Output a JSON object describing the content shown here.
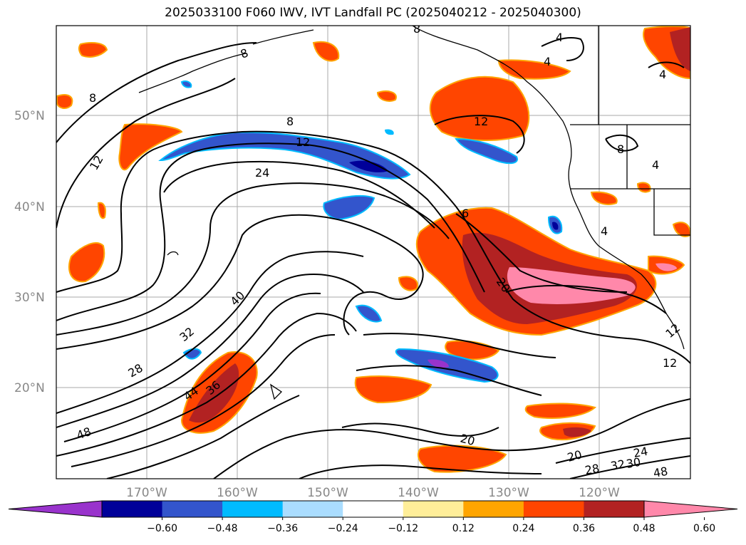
{
  "title": "2025033100 F060 IWV, IVT Landfall PC (2025040212 - 2025040300)",
  "colors": {
    "negative": [
      "#9933CC",
      "#000099",
      "#3355CC",
      "#00BBFF",
      "#AADDFF"
    ],
    "neutral": "#FFFFFF",
    "positive": [
      "#FFEE99",
      "#FFA500",
      "#FF4500",
      "#B22222",
      "#FF88AA"
    ],
    "contour": "#000000",
    "grid": "#AAAAAA",
    "coast": "#000000"
  },
  "lon_ticks": [
    "170°W",
    "160°W",
    "150°W",
    "140°W",
    "130°W",
    "120°W"
  ],
  "lat_ticks": [
    "50°N",
    "40°N",
    "30°N",
    "20°N"
  ],
  "colorbar": {
    "ticks": [
      "−0.60",
      "−0.48",
      "−0.36",
      "−0.24",
      "−0.12",
      "0.12",
      "0.24",
      "0.36",
      "0.48",
      "0.60"
    ]
  },
  "contour_labels": [
    "8",
    "4",
    "4",
    "4",
    "8",
    "12",
    "12",
    "8",
    "12",
    "24",
    "12",
    "4",
    "8",
    "4",
    "6",
    "20",
    "40",
    "32",
    "28",
    "44",
    "36",
    "48",
    "20",
    "20",
    "28",
    "32",
    "30",
    "24",
    "48",
    "12",
    "8"
  ]
}
